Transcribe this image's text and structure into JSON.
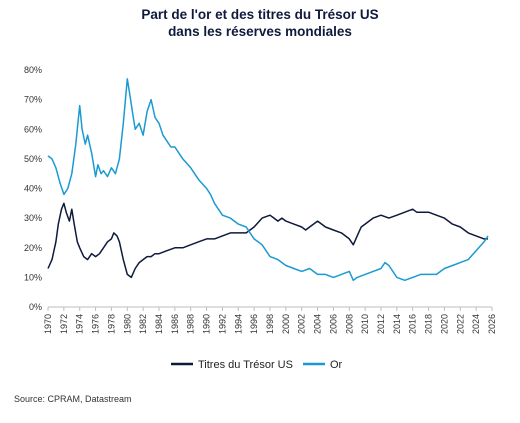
{
  "chart_data": {
    "type": "line",
    "title": [
      "Part de l'or et des titres du Trésor US",
      "dans les réserves mondiales"
    ],
    "xlabel": "",
    "ylabel": "",
    "x_ticks": [
      "1970",
      "1972",
      "1974",
      "1976",
      "1978",
      "1980",
      "1982",
      "1984",
      "1986",
      "1988",
      "1990",
      "1992",
      "1994",
      "1996",
      "1998",
      "2000",
      "2002",
      "2004",
      "2006",
      "2008",
      "2010",
      "2012",
      "2014",
      "2016",
      "2018",
      "2020",
      "2022",
      "2024",
      "2026"
    ],
    "y_ticks": [
      "0%",
      "10%",
      "20%",
      "30%",
      "40%",
      "50%",
      "60%",
      "70%",
      "80%"
    ],
    "xlim": [
      1970,
      2026
    ],
    "ylim": [
      0,
      80
    ],
    "grid": false,
    "legend_position": "bottom",
    "series": [
      {
        "name": "Titres du Trésor US",
        "color": "#0f1a3c",
        "points": [
          [
            1970,
            13
          ],
          [
            1970.5,
            16
          ],
          [
            1971,
            22
          ],
          [
            1971.3,
            28
          ],
          [
            1971.7,
            33
          ],
          [
            1972,
            35
          ],
          [
            1972.3,
            32
          ],
          [
            1972.7,
            29
          ],
          [
            1973,
            33
          ],
          [
            1973.3,
            28
          ],
          [
            1973.7,
            22
          ],
          [
            1974,
            20
          ],
          [
            1974.5,
            17
          ],
          [
            1975,
            16
          ],
          [
            1975.5,
            18
          ],
          [
            1976,
            17
          ],
          [
            1976.5,
            18
          ],
          [
            1977,
            20
          ],
          [
            1977.5,
            22
          ],
          [
            1978,
            23
          ],
          [
            1978.3,
            25
          ],
          [
            1978.7,
            24
          ],
          [
            1979,
            22
          ],
          [
            1979.5,
            16
          ],
          [
            1980,
            11
          ],
          [
            1980.5,
            10
          ],
          [
            1981,
            13
          ],
          [
            1981.5,
            15
          ],
          [
            1982,
            16
          ],
          [
            1982.5,
            17
          ],
          [
            1983,
            17
          ],
          [
            1983.5,
            18
          ],
          [
            1984,
            18
          ],
          [
            1985,
            19
          ],
          [
            1986,
            20
          ],
          [
            1987,
            20
          ],
          [
            1988,
            21
          ],
          [
            1989,
            22
          ],
          [
            1990,
            23
          ],
          [
            1991,
            23
          ],
          [
            1992,
            24
          ],
          [
            1993,
            25
          ],
          [
            1994,
            25
          ],
          [
            1995,
            25
          ],
          [
            1996,
            27
          ],
          [
            1997,
            30
          ],
          [
            1998,
            31
          ],
          [
            1998.5,
            30
          ],
          [
            1999,
            29
          ],
          [
            1999.5,
            30
          ],
          [
            2000,
            29
          ],
          [
            2001,
            28
          ],
          [
            2002,
            27
          ],
          [
            2002.5,
            26
          ],
          [
            2003,
            27
          ],
          [
            2004,
            29
          ],
          [
            2005,
            27
          ],
          [
            2006,
            26
          ],
          [
            2007,
            25
          ],
          [
            2008,
            23
          ],
          [
            2008.5,
            21
          ],
          [
            2009,
            24
          ],
          [
            2009.5,
            27
          ],
          [
            2010,
            28
          ],
          [
            2011,
            30
          ],
          [
            2012,
            31
          ],
          [
            2013,
            30
          ],
          [
            2014,
            31
          ],
          [
            2015,
            32
          ],
          [
            2016,
            33
          ],
          [
            2016.5,
            32
          ],
          [
            2017,
            32
          ],
          [
            2018,
            32
          ],
          [
            2019,
            31
          ],
          [
            2020,
            30
          ],
          [
            2021,
            28
          ],
          [
            2022,
            27
          ],
          [
            2023,
            25
          ],
          [
            2024,
            24
          ],
          [
            2025,
            23
          ],
          [
            2025.5,
            23
          ]
        ]
      },
      {
        "name": "Or",
        "color": "#1b9ad2",
        "points": [
          [
            1970,
            51
          ],
          [
            1970.5,
            50
          ],
          [
            1971,
            47
          ],
          [
            1971.5,
            42
          ],
          [
            1972,
            38
          ],
          [
            1972.5,
            40
          ],
          [
            1973,
            45
          ],
          [
            1973.5,
            55
          ],
          [
            1974,
            68
          ],
          [
            1974.3,
            60
          ],
          [
            1974.7,
            55
          ],
          [
            1975,
            58
          ],
          [
            1975.5,
            52
          ],
          [
            1976,
            44
          ],
          [
            1976.3,
            48
          ],
          [
            1976.7,
            45
          ],
          [
            1977,
            46
          ],
          [
            1977.5,
            44
          ],
          [
            1978,
            47
          ],
          [
            1978.5,
            45
          ],
          [
            1979,
            50
          ],
          [
            1979.5,
            62
          ],
          [
            1980,
            77
          ],
          [
            1980.3,
            72
          ],
          [
            1980.7,
            65
          ],
          [
            1981,
            60
          ],
          [
            1981.5,
            62
          ],
          [
            1982,
            58
          ],
          [
            1982.5,
            66
          ],
          [
            1983,
            70
          ],
          [
            1983.5,
            64
          ],
          [
            1984,
            62
          ],
          [
            1984.5,
            58
          ],
          [
            1985,
            56
          ],
          [
            1985.5,
            54
          ],
          [
            1986,
            54
          ],
          [
            1986.5,
            52
          ],
          [
            1987,
            50
          ],
          [
            1988,
            47
          ],
          [
            1989,
            43
          ],
          [
            1990,
            40
          ],
          [
            1990.5,
            38
          ],
          [
            1991,
            35
          ],
          [
            1992,
            31
          ],
          [
            1993,
            30
          ],
          [
            1994,
            28
          ],
          [
            1995,
            27
          ],
          [
            1996,
            23
          ],
          [
            1997,
            21
          ],
          [
            1998,
            17
          ],
          [
            1999,
            16
          ],
          [
            2000,
            14
          ],
          [
            2001,
            13
          ],
          [
            2002,
            12
          ],
          [
            2003,
            13
          ],
          [
            2004,
            11
          ],
          [
            2005,
            11
          ],
          [
            2006,
            10
          ],
          [
            2007,
            11
          ],
          [
            2008,
            12
          ],
          [
            2008.5,
            9
          ],
          [
            2009,
            10
          ],
          [
            2010,
            11
          ],
          [
            2011,
            12
          ],
          [
            2012,
            13
          ],
          [
            2012.5,
            15
          ],
          [
            2013,
            14
          ],
          [
            2014,
            10
          ],
          [
            2015,
            9
          ],
          [
            2016,
            10
          ],
          [
            2017,
            11
          ],
          [
            2018,
            11
          ],
          [
            2019,
            11
          ],
          [
            2020,
            13
          ],
          [
            2021,
            14
          ],
          [
            2022,
            15
          ],
          [
            2023,
            16
          ],
          [
            2024,
            19
          ],
          [
            2025,
            22
          ],
          [
            2025.5,
            24
          ]
        ]
      }
    ]
  },
  "source": "Source: CPRAM, Datastream"
}
